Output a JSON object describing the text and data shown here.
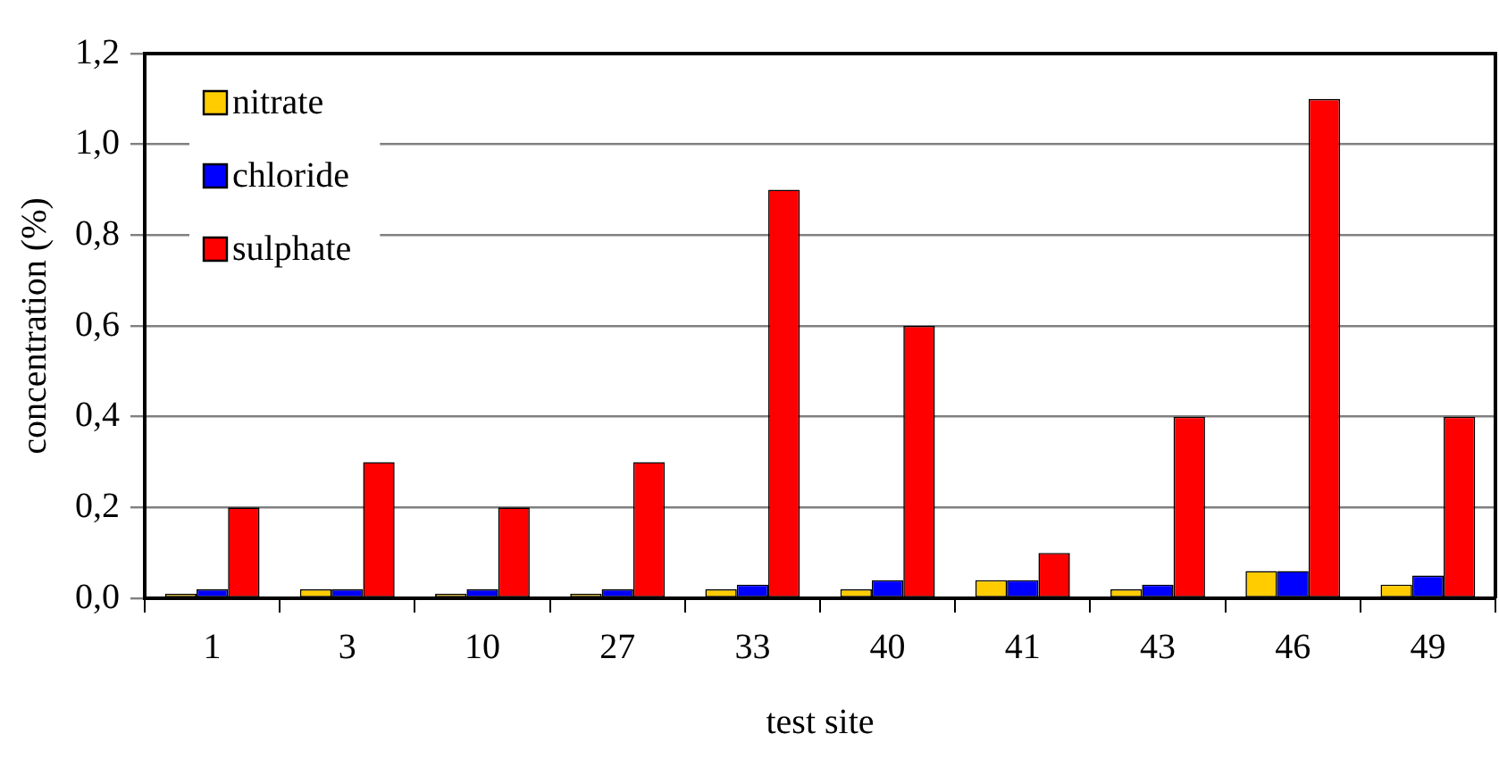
{
  "chart_data": {
    "type": "bar",
    "xlabel": "test site",
    "ylabel": "concentration (%)",
    "categories": [
      "1",
      "3",
      "10",
      "27",
      "33",
      "40",
      "41",
      "43",
      "46",
      "49"
    ],
    "series": [
      {
        "name": "nitrate",
        "color": "#ffcc00",
        "values": [
          0.01,
          0.02,
          0.01,
          0.01,
          0.02,
          0.02,
          0.04,
          0.02,
          0.06,
          0.03
        ]
      },
      {
        "name": "chloride",
        "color": "#0000ff",
        "values": [
          0.02,
          0.02,
          0.02,
          0.02,
          0.03,
          0.04,
          0.04,
          0.03,
          0.06,
          0.05
        ]
      },
      {
        "name": "sulphate",
        "color": "#ff0000",
        "values": [
          0.2,
          0.3,
          0.2,
          0.3,
          0.9,
          0.6,
          0.1,
          0.4,
          1.1,
          0.4
        ]
      }
    ],
    "ylim": [
      0,
      1.2
    ],
    "yticks": [
      {
        "value": 0,
        "label": "0,0"
      },
      {
        "value": 0.2,
        "label": "0,2"
      },
      {
        "value": 0.4,
        "label": "0,4"
      },
      {
        "value": 0.6,
        "label": "0,6"
      },
      {
        "value": 0.8,
        "label": "0,8"
      },
      {
        "value": 1,
        "label": "1,0"
      },
      {
        "value": 1.2,
        "label": "1,2"
      }
    ],
    "grid": "y",
    "legend": "top left"
  }
}
